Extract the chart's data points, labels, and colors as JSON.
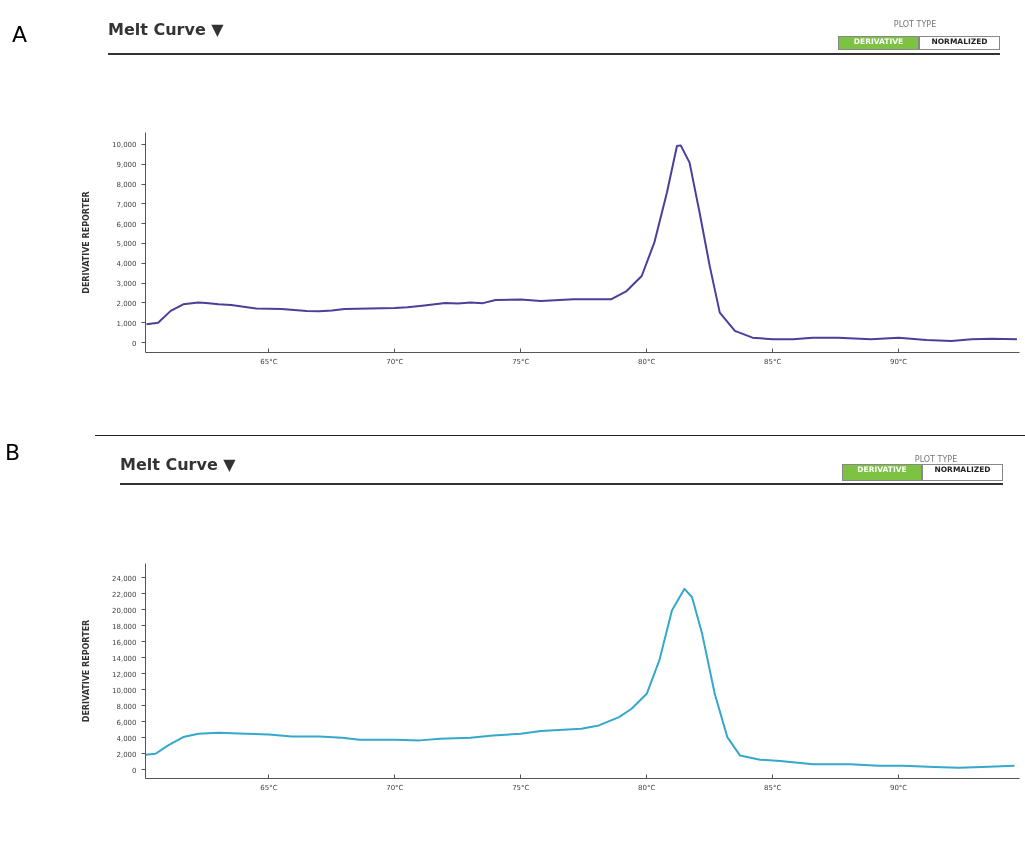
{
  "chart_data": [
    {
      "type": "line",
      "title": "Melt Curve ▼",
      "ylabel": "DERIVATIVE REPORTER",
      "grid": false,
      "annotations": [
        "A",
        "PLOT TYPE",
        "DERIVATIVE",
        "NORMALIZED"
      ],
      "xlim": [
        60.1,
        94.8
      ],
      "ylim": [
        -500,
        10600
      ],
      "xticks": [
        {
          "value": 65,
          "label": "65°C"
        },
        {
          "value": 70,
          "label": "70°C"
        },
        {
          "value": 75,
          "label": "75°C"
        },
        {
          "value": 80,
          "label": "80°C"
        },
        {
          "value": 85,
          "label": "85°C"
        },
        {
          "value": 90,
          "label": "90°C"
        }
      ],
      "yticks": [
        0,
        {
          "value": 1000,
          "label": "1,000"
        },
        {
          "value": 2000,
          "label": "2,000"
        },
        {
          "value": 3000,
          "label": "3,000"
        },
        {
          "value": 4000,
          "label": "4,000"
        },
        {
          "value": 5000,
          "label": "5,000"
        },
        {
          "value": 6000,
          "label": "6,000"
        },
        {
          "value": 7000,
          "label": "7,000"
        },
        {
          "value": 8000,
          "label": "8,000"
        },
        {
          "value": 9000,
          "label": "9,000"
        },
        {
          "value": 10000,
          "label": "10,000"
        }
      ],
      "x": [
        60.14,
        60.6,
        61.1,
        61.6,
        62.2,
        62.5,
        63.0,
        63.5,
        64.5,
        65.5,
        66.5,
        67.0,
        67.5,
        68.0,
        69.0,
        70.0,
        70.5,
        71.0,
        71.5,
        72.0,
        72.5,
        73.0,
        73.5,
        74.0,
        75.0,
        75.8,
        77.1,
        78.6,
        79.2,
        79.8,
        80.3,
        80.8,
        81.2,
        81.35,
        81.7,
        82.1,
        82.5,
        82.9,
        83.5,
        84.2,
        85.0,
        85.8,
        86.6,
        87.6,
        88.9,
        90.0,
        91.1,
        92.1,
        92.9,
        93.7,
        94.7
      ],
      "series": [
        {
          "color": "#4b3f9a",
          "values": [
            925,
            1000,
            1600,
            1930,
            2020,
            2000,
            1930,
            1900,
            1720,
            1700,
            1600,
            1580,
            1620,
            1700,
            1720,
            1750,
            1780,
            1850,
            1920,
            2000,
            1970,
            2020,
            1990,
            2150,
            2170,
            2100,
            2190,
            2190,
            2600,
            3360,
            5040,
            7560,
            9920,
            9950,
            9080,
            6550,
            3870,
            1510,
            590,
            250,
            170,
            170,
            250,
            250,
            170,
            250,
            130,
            80,
            170,
            200,
            170
          ]
        }
      ]
    },
    {
      "type": "line",
      "title": "Melt Curve ▼",
      "ylabel": "DERIVATIVE REPORTER",
      "grid": false,
      "annotations": [
        "B",
        "PLOT TYPE",
        "DERIVATIVE",
        "NORMALIZED"
      ],
      "xlim": [
        60.1,
        94.8
      ],
      "ylim": [
        -1100,
        25800
      ],
      "xticks": [
        {
          "value": 65,
          "label": "65°C"
        },
        {
          "value": 70,
          "label": "70°C"
        },
        {
          "value": 75,
          "label": "75°C"
        },
        {
          "value": 80,
          "label": "80°C"
        },
        {
          "value": 85,
          "label": "85°C"
        },
        {
          "value": 90,
          "label": "90°C"
        }
      ],
      "yticks": [
        0,
        {
          "value": 2000,
          "label": "2,000"
        },
        {
          "value": 4000,
          "label": "4,000"
        },
        {
          "value": 6000,
          "label": "6,000"
        },
        {
          "value": 8000,
          "label": "8,000"
        },
        {
          "value": 10000,
          "label": "10,000"
        },
        {
          "value": 12000,
          "label": "12,000"
        },
        {
          "value": 14000,
          "label": "14,000"
        },
        {
          "value": 16000,
          "label": "16,000"
        },
        {
          "value": 18000,
          "label": "18,000"
        },
        {
          "value": 20000,
          "label": "20,000"
        },
        {
          "value": 22000,
          "label": "22,000"
        },
        {
          "value": 24000,
          "label": "24,000"
        }
      ],
      "x": [
        60.1,
        60.5,
        61.0,
        61.6,
        62.2,
        63.0,
        64.1,
        65.0,
        65.9,
        67.0,
        67.9,
        68.6,
        70.0,
        71.0,
        71.8,
        73.0,
        73.9,
        75.0,
        75.8,
        77.4,
        78.1,
        78.9,
        79.4,
        80.0,
        80.5,
        81.0,
        81.5,
        81.8,
        82.2,
        82.7,
        83.2,
        83.7,
        84.5,
        85.3,
        86.6,
        88.1,
        89.2,
        90.2,
        91.4,
        92.4,
        93.3,
        94.6
      ],
      "series": [
        {
          "color": "#35a8cc",
          "values": [
            1880,
            2000,
            3040,
            4080,
            4500,
            4630,
            4500,
            4420,
            4170,
            4170,
            4000,
            3750,
            3750,
            3670,
            3880,
            4000,
            4290,
            4500,
            4830,
            5130,
            5540,
            6580,
            7630,
            9500,
            13670,
            19920,
            22630,
            21580,
            17000,
            9500,
            4080,
            1790,
            1250,
            1080,
            670,
            670,
            500,
            500,
            330,
            250,
            330,
            500
          ]
        }
      ]
    }
  ]
}
